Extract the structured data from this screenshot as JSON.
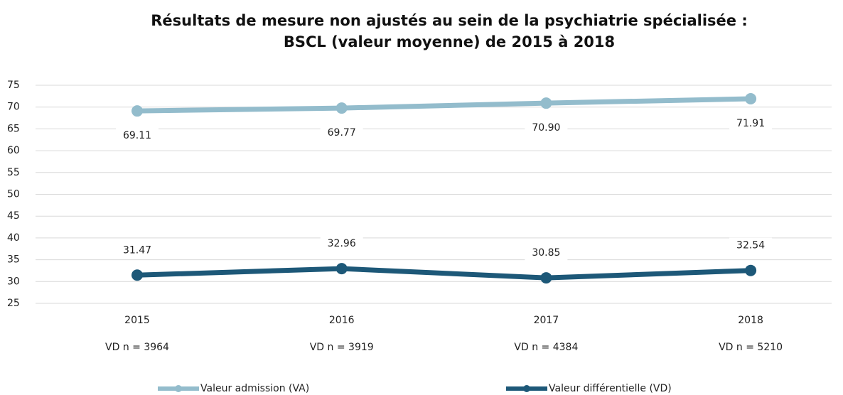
{
  "chart_data": {
    "type": "line",
    "title": "Résultats de mesure non ajustés au sein de la psychiatrie spécialisée :",
    "subtitle": "BSCL (valeur moyenne) de 2015 à 2018",
    "categories": [
      "2015",
      "2016",
      "2017",
      "2018"
    ],
    "category_notes": [
      "VD n = 3964",
      "VD n = 3919",
      "VD n = 4384",
      "VD n = 5210"
    ],
    "series": [
      {
        "name": "Valeur admission (VA)",
        "color": "#93bccc",
        "values": [
          69.11,
          69.77,
          70.9,
          71.91
        ],
        "value_labels": [
          "69.11",
          "69.77",
          "70.90",
          "71.91"
        ],
        "label_position": "below"
      },
      {
        "name": "Valeur différentielle (VD)",
        "color": "#1d5878",
        "values": [
          31.47,
          32.96,
          30.85,
          32.54
        ],
        "value_labels": [
          "31.47",
          "32.96",
          "30.85",
          "32.54"
        ],
        "label_position": "above"
      }
    ],
    "ylim": [
      25,
      75
    ],
    "yticks": [
      25,
      30,
      35,
      40,
      45,
      50,
      55,
      60,
      65,
      70,
      75
    ],
    "grid": true,
    "legend": "bottom"
  }
}
